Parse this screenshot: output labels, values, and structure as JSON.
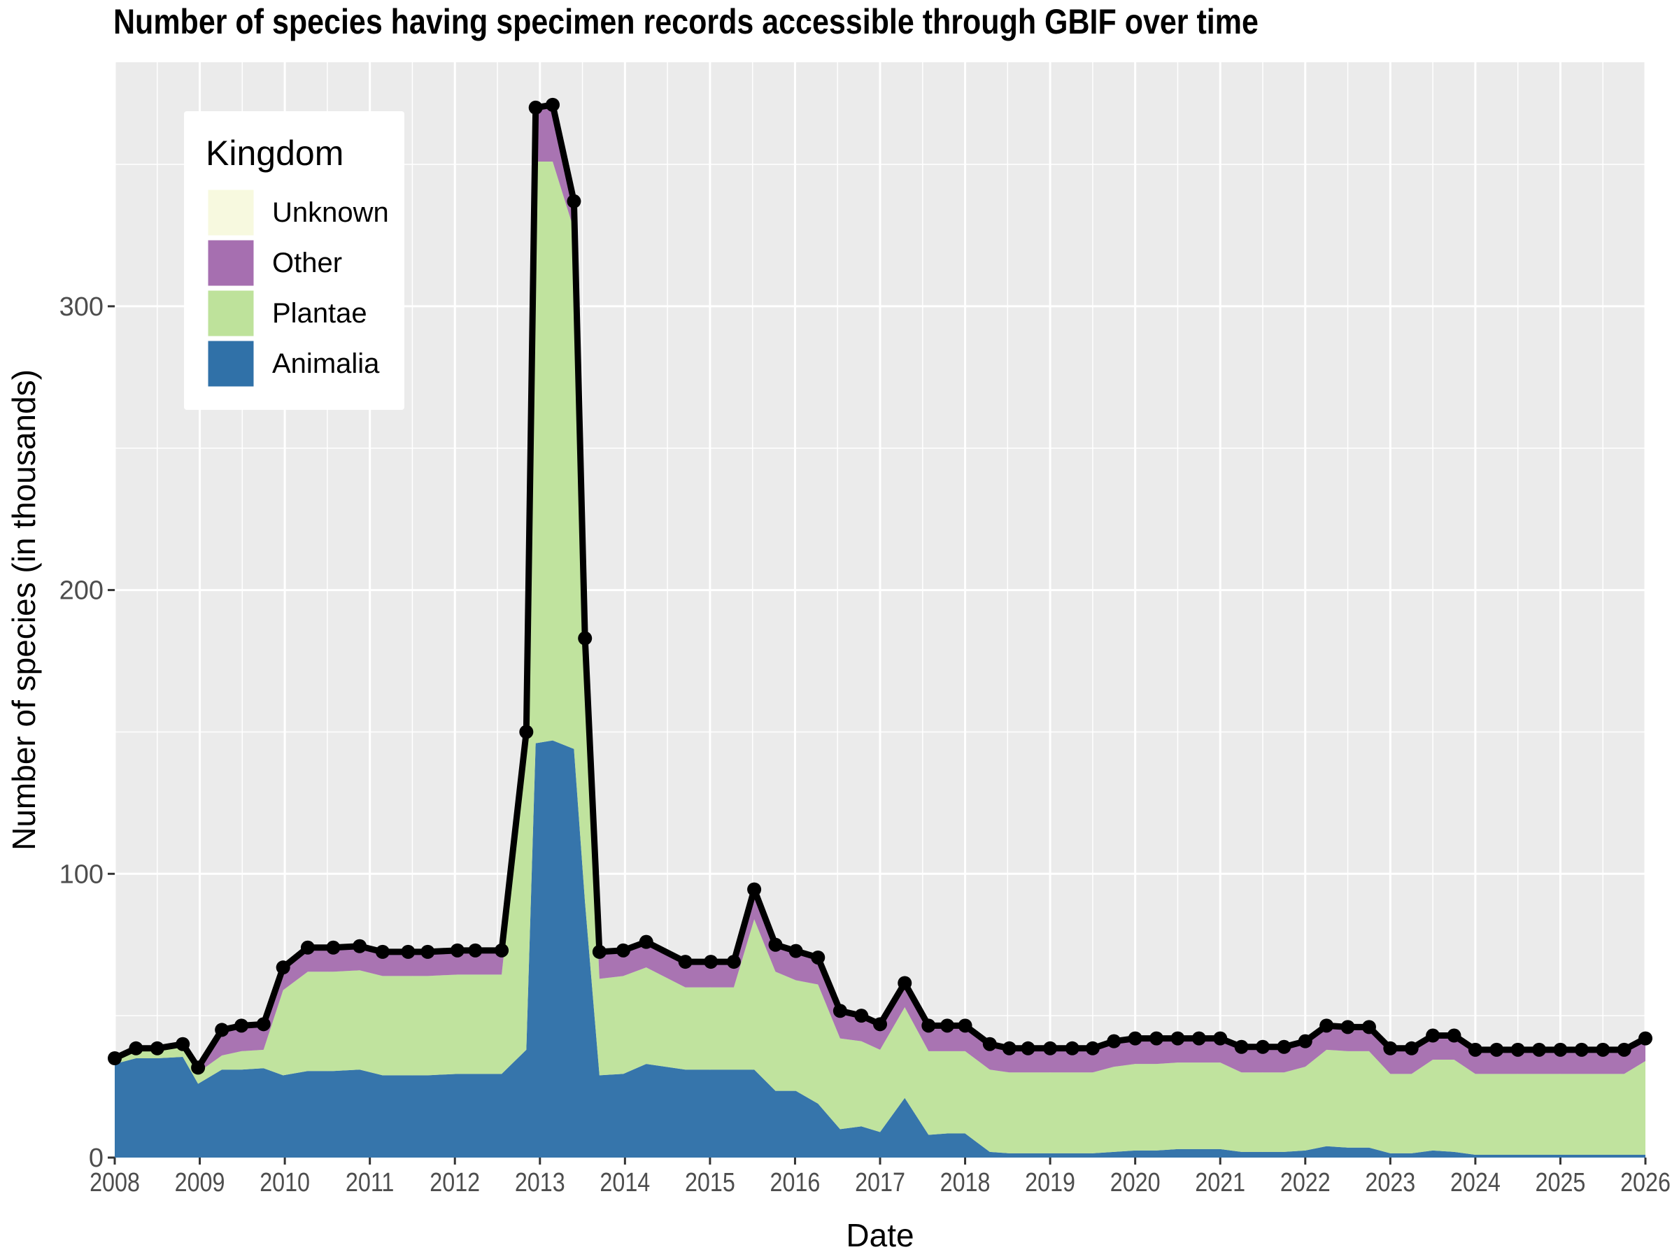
{
  "chart_data": {
    "type": "area",
    "title": "Number of species having specimen records accessible through GBIF over time",
    "xlabel": "Date",
    "ylabel": "Number of species (in thousands)",
    "xlim": [
      2008,
      2026
    ],
    "ylim": [
      0,
      386
    ],
    "x_ticks": [
      "2008",
      "2009",
      "2010",
      "2011",
      "2012",
      "2013",
      "2014",
      "2015",
      "2016",
      "2017",
      "2018",
      "2019",
      "2020",
      "2021",
      "2022",
      "2023",
      "2024",
      "2025",
      "2026"
    ],
    "y_ticks": [
      "0",
      "100",
      "200",
      "300"
    ],
    "grid": true,
    "legend": {
      "title": "Kingdom",
      "position": "top-left",
      "entries": [
        "Unknown",
        "Other",
        "Plantae",
        "Animalia"
      ]
    },
    "colors": {
      "Unknown": "#f7f9df",
      "Other": "#a66fb0",
      "Plantae": "#bee29b",
      "Animalia": "#3071a8",
      "total_line": "#000000",
      "panel": "#ebebeb"
    },
    "x": [
      2008.0,
      2008.25,
      2008.5,
      2008.8,
      2008.98,
      2009.26,
      2009.49,
      2009.75,
      2009.98,
      2010.27,
      2010.57,
      2010.88,
      2011.15,
      2011.45,
      2011.68,
      2012.03,
      2012.24,
      2012.55,
      2012.84,
      2012.95,
      2013.15,
      2013.4,
      2013.53,
      2013.7,
      2013.98,
      2014.25,
      2014.71,
      2015.01,
      2015.28,
      2015.52,
      2015.77,
      2016.01,
      2016.27,
      2016.53,
      2016.78,
      2017.0,
      2017.29,
      2017.57,
      2017.79,
      2018.0,
      2018.29,
      2018.52,
      2018.74,
      2019.0,
      2019.26,
      2019.5,
      2019.75,
      2020.0,
      2020.25,
      2020.5,
      2020.75,
      2021.0,
      2021.25,
      2021.5,
      2021.75,
      2022.0,
      2022.25,
      2022.5,
      2022.75,
      2023.0,
      2023.25,
      2023.5,
      2023.75,
      2024.0,
      2024.25,
      2024.5,
      2024.75,
      2025.0,
      2025.25,
      2025.5,
      2025.75,
      2026.0
    ],
    "series": [
      {
        "name": "Animalia",
        "values": [
          33,
          35,
          35,
          35.5,
          26,
          31,
          31,
          31.5,
          29,
          30.5,
          30.5,
          31,
          29,
          29,
          29,
          29.5,
          29.5,
          29.5,
          38,
          146,
          147,
          144,
          90,
          29,
          29.5,
          33,
          31,
          31,
          31,
          31,
          23.5,
          23.5,
          19,
          10,
          11,
          9,
          21,
          8,
          8.5,
          8.5,
          2,
          1.5,
          1.5,
          1.5,
          1.5,
          1.5,
          2,
          2.5,
          2.5,
          3,
          3,
          3,
          2,
          2,
          2,
          2.5,
          4,
          3.5,
          3.5,
          1.5,
          1.5,
          2.5,
          2,
          1,
          1,
          1,
          1,
          1,
          1,
          1,
          1,
          1
        ]
      },
      {
        "name": "Plantae",
        "values": [
          2,
          3,
          3,
          4,
          4,
          5,
          6.5,
          6.5,
          30,
          35,
          35,
          35,
          35,
          35,
          35,
          35,
          35,
          35,
          108,
          205,
          204,
          183,
          85,
          34,
          34.5,
          34,
          29,
          29,
          29,
          53,
          42,
          39,
          42,
          32,
          30,
          29,
          32,
          29.5,
          29,
          29,
          29,
          28.5,
          28.5,
          28.5,
          28.5,
          28.5,
          30,
          30.5,
          30.5,
          30.5,
          30.5,
          30.5,
          28,
          28,
          28,
          29.5,
          34,
          34,
          34,
          28,
          28,
          32,
          32.5,
          28.5,
          28.5,
          28.5,
          28.5,
          28.5,
          28.5,
          28.5,
          28.5,
          33
        ]
      },
      {
        "name": "Other",
        "values": [
          0,
          0.5,
          0.5,
          0.5,
          1.7,
          9,
          9,
          9,
          8,
          8.5,
          8.5,
          8.5,
          8.5,
          8.5,
          8.5,
          8.5,
          8.5,
          8.5,
          4,
          19,
          20,
          10,
          8,
          9.5,
          9,
          9,
          9,
          9,
          9,
          10.5,
          9.5,
          10.3,
          9.5,
          9.7,
          9,
          9,
          8.5,
          9,
          9,
          9,
          9,
          8.5,
          8.5,
          8.5,
          8.5,
          8.5,
          9,
          9,
          9,
          8.5,
          8.5,
          8.5,
          9,
          9,
          9,
          9,
          8.5,
          8.5,
          8.5,
          9,
          9,
          8.5,
          8.5,
          8.5,
          8.5,
          8.5,
          8.5,
          8.5,
          8.5,
          8.5,
          8.5,
          8
        ]
      },
      {
        "name": "Unknown",
        "values": [
          0,
          0,
          0,
          0,
          0,
          0,
          0,
          0,
          0,
          0,
          0,
          0,
          0,
          0,
          0,
          0,
          0,
          0,
          0,
          0,
          0,
          0,
          0,
          0,
          0,
          0,
          0,
          0,
          0,
          0,
          0,
          0,
          0,
          0,
          0,
          0,
          0,
          0,
          0,
          0,
          0,
          0,
          0,
          0,
          0,
          0,
          0,
          0,
          0,
          0,
          0,
          0,
          0,
          0,
          0,
          0,
          0,
          0,
          0,
          0,
          0,
          0,
          0,
          0,
          0,
          0,
          0,
          0,
          0,
          0,
          0,
          0
        ]
      }
    ]
  }
}
